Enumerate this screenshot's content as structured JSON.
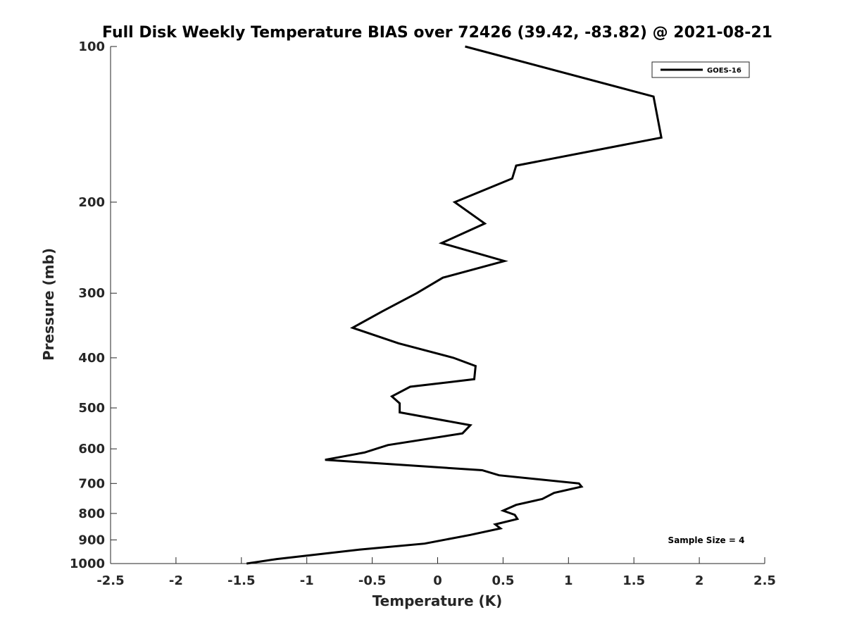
{
  "chart_data": {
    "type": "line",
    "title": "Full Disk Weekly Temperature BIAS over 72426 (39.42, -83.82) @ 2021-08-21",
    "xlabel": "Temperature (K)",
    "ylabel": "Pressure (mb)",
    "xlim": [
      -2.5,
      2.5
    ],
    "ylim": [
      100,
      1000
    ],
    "y_scale": "log",
    "y_inverted": true,
    "grid": false,
    "legend_position": "top-right",
    "x_ticks": [
      -2.5,
      -2,
      -1.5,
      -1,
      -0.5,
      0,
      0.5,
      1,
      1.5,
      2,
      2.5
    ],
    "x_tick_labels": [
      "-2.5",
      "-2",
      "-1.5",
      "-1",
      "-0.5",
      "0",
      "0.5",
      "1",
      "1.5",
      "2",
      "2.5"
    ],
    "y_ticks": [
      100,
      200,
      300,
      400,
      500,
      600,
      700,
      800,
      900,
      1000
    ],
    "y_tick_labels": [
      "100",
      "200",
      "300",
      "400",
      "500",
      "600",
      "700",
      "800",
      "900",
      "1000"
    ],
    "series": [
      {
        "name": "GOES-16",
        "color": "#000000",
        "points": [
          [
            0.21,
            100
          ],
          [
            1.65,
            125
          ],
          [
            1.71,
            150
          ],
          [
            0.6,
            170
          ],
          [
            0.57,
            180
          ],
          [
            0.13,
            200
          ],
          [
            0.36,
            220
          ],
          [
            0.03,
            240
          ],
          [
            0.51,
            260
          ],
          [
            0.04,
            280
          ],
          [
            -0.16,
            300
          ],
          [
            -0.42,
            325
          ],
          [
            -0.65,
            350
          ],
          [
            -0.3,
            375
          ],
          [
            0.12,
            400
          ],
          [
            0.29,
            415
          ],
          [
            0.28,
            440
          ],
          [
            -0.21,
            455
          ],
          [
            -0.35,
            475
          ],
          [
            -0.29,
            490
          ],
          [
            -0.29,
            510
          ],
          [
            0.25,
            540
          ],
          [
            0.19,
            560
          ],
          [
            -0.38,
            590
          ],
          [
            -0.56,
            610
          ],
          [
            -0.86,
            630
          ],
          [
            0.34,
            660
          ],
          [
            0.47,
            675
          ],
          [
            1.08,
            700
          ],
          [
            1.1,
            710
          ],
          [
            0.89,
            730
          ],
          [
            0.8,
            750
          ],
          [
            0.6,
            770
          ],
          [
            0.5,
            790
          ],
          [
            0.59,
            805
          ],
          [
            0.61,
            820
          ],
          [
            0.44,
            840
          ],
          [
            0.48,
            855
          ],
          [
            0.25,
            880
          ],
          [
            -0.1,
            915
          ],
          [
            -0.6,
            940
          ],
          [
            -1.23,
            980
          ],
          [
            -1.46,
            1000
          ]
        ]
      }
    ],
    "annotations": [
      {
        "text": "Sample Size = 4"
      }
    ]
  }
}
